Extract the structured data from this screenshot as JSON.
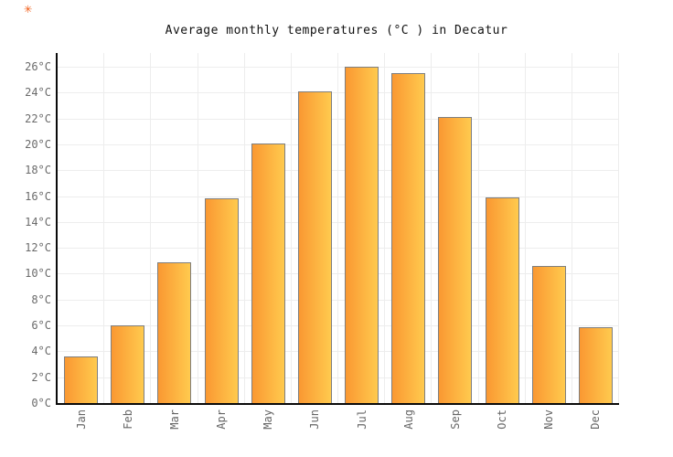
{
  "page": {
    "corner_mark_icon": "✳"
  },
  "chart_data": {
    "type": "bar",
    "title": "Average monthly temperatures (°C ) in Decatur",
    "categories": [
      "Jan",
      "Feb",
      "Mar",
      "Apr",
      "May",
      "Jun",
      "Jul",
      "Aug",
      "Sep",
      "Oct",
      "Nov",
      "Dec"
    ],
    "values": [
      3.6,
      6.0,
      10.9,
      15.8,
      20.1,
      24.1,
      26.0,
      25.5,
      22.1,
      15.9,
      10.6,
      5.9
    ],
    "xlabel": "",
    "ylabel": "",
    "ylim": [
      0,
      26
    ],
    "ytick_step": 2,
    "ytick_labels": [
      "0°C",
      "2°C",
      "4°C",
      "6°C",
      "8°C",
      "10°C",
      "12°C",
      "14°C",
      "16°C",
      "18°C",
      "20°C",
      "22°C",
      "24°C",
      "26°C"
    ],
    "grid": true,
    "legend": "none",
    "colors": {
      "bar_gradient_left": "#fa9832",
      "bar_gradient_right": "#ffca4e",
      "bar_border": "#7f7f7f",
      "gridline": "#ededed",
      "axis": "#0a0a0a",
      "tick_text": "#666666",
      "title_text": "#111111",
      "corner_mark": "#f05a14"
    }
  }
}
